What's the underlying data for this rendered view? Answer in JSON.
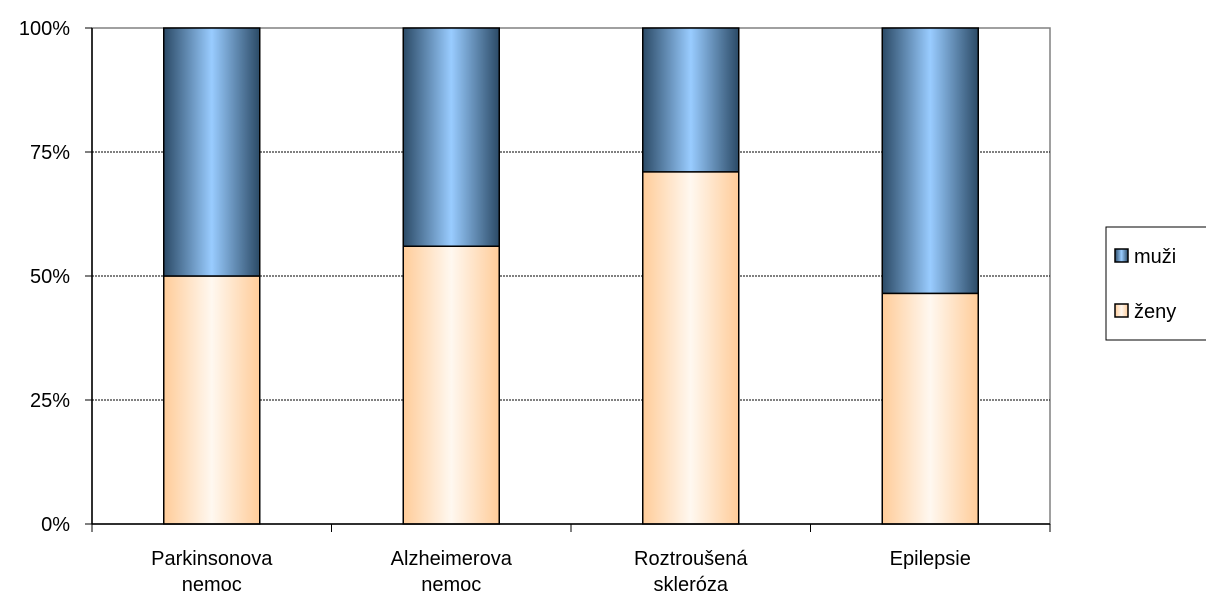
{
  "chart_data": {
    "type": "bar",
    "stacked": true,
    "percent": true,
    "categories": [
      [
        "Parkinsonova",
        "nemoc"
      ],
      [
        "Alzheimerova",
        "nemoc"
      ],
      [
        "Roztroušená",
        "skleróza"
      ],
      [
        "Epilepsie"
      ]
    ],
    "series": [
      {
        "name": "ženy",
        "values": [
          50,
          56,
          71,
          46.5
        ]
      },
      {
        "name": "muži",
        "values": [
          50,
          44,
          29,
          53.5
        ]
      }
    ],
    "ylim": [
      0,
      100
    ],
    "yticks": [
      "0%",
      "25%",
      "50%",
      "75%",
      "100%"
    ],
    "grid": true,
    "legend": "right",
    "colors": {
      "zeny_light": "#fff8f0",
      "zeny_dark": "#ffcc99",
      "muzi_light": "#99ccff",
      "muzi_dark": "#2b4a66",
      "plot_border": "#808080",
      "grid": "#000000"
    }
  }
}
